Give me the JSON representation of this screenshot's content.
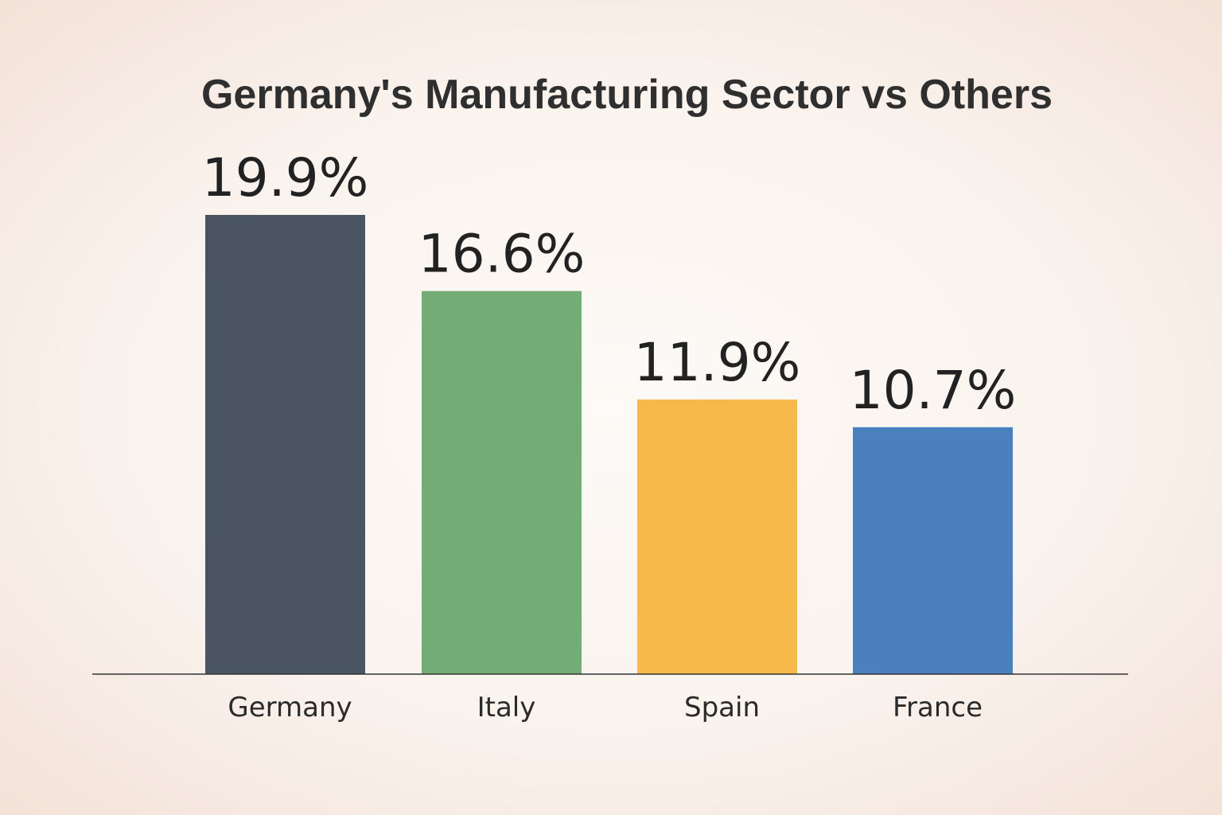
{
  "chart_data": {
    "type": "bar",
    "title": "Germany's Manufacturing Sector vs Others",
    "categories": [
      "Germany",
      "Italy",
      "Spain",
      "France"
    ],
    "values": [
      19.9,
      16.6,
      11.9,
      10.7
    ],
    "labels": [
      "19.9%",
      "16.6%",
      "11.9%",
      "10.7%"
    ],
    "colors": [
      "#4a5463",
      "#74ac75",
      "#f6b94a",
      "#4a80bd"
    ],
    "xlabel": "",
    "ylabel": "",
    "ylim": [
      0,
      19.9
    ],
    "grid": false,
    "legend": "none"
  }
}
